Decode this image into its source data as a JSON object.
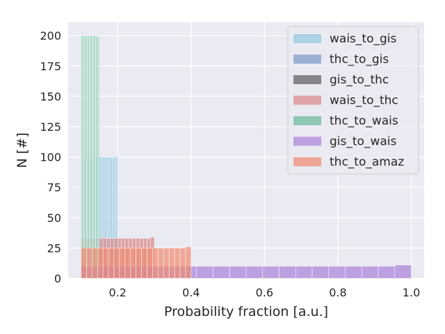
{
  "chart_data": {
    "type": "bar",
    "xlabel": "Probability fraction [a.u.]",
    "ylabel": "N [#]",
    "xlim": [
      0.065,
      1.035
    ],
    "ylim": [
      0,
      211
    ],
    "xticks": [
      0.2,
      0.4,
      0.6,
      0.8,
      1.0
    ],
    "xtick_labels": [
      "0.2",
      "0.4",
      "0.6",
      "0.8",
      "1.0"
    ],
    "yticks": [
      0,
      25,
      50,
      75,
      100,
      125,
      150,
      175,
      200
    ],
    "ytick_labels": [
      "0",
      "25",
      "50",
      "75",
      "100",
      "125",
      "150",
      "175",
      "200"
    ],
    "grid": true,
    "legend_position": "top-right",
    "bins_per_series": 20,
    "series": [
      {
        "name": "wais_to_gis",
        "color": "#92c5de",
        "range": [
          0.1,
          0.2
        ],
        "values": [
          100,
          100,
          100,
          100,
          100,
          100,
          100,
          100,
          100,
          100,
          100,
          100,
          100,
          100,
          100,
          100,
          100,
          100,
          100,
          101
        ]
      },
      {
        "name": "thc_to_gis",
        "color": "#7b97c9",
        "range": [
          0.1,
          0.14
        ],
        "values": [
          100,
          100,
          100,
          100,
          100,
          100,
          100,
          100,
          100,
          100,
          100,
          100,
          100,
          100,
          100,
          100,
          100,
          100,
          100,
          100
        ]
      },
      {
        "name": "gis_to_thc",
        "color": "#5c5c5c",
        "range": [
          0.1,
          0.15
        ],
        "values": [
          33,
          33,
          33,
          33,
          33,
          33,
          33,
          33,
          33,
          33,
          33,
          33,
          33,
          33,
          33,
          33,
          33,
          33,
          33,
          34
        ]
      },
      {
        "name": "wais_to_thc",
        "color": "#d98686",
        "range": [
          0.1,
          0.3
        ],
        "values": [
          33,
          33,
          33,
          33,
          33,
          33,
          33,
          33,
          33,
          33,
          33,
          33,
          33,
          33,
          33,
          33,
          33,
          33,
          33,
          34
        ]
      },
      {
        "name": "thc_to_wais",
        "color": "#66b89a",
        "range": [
          0.1,
          0.15
        ],
        "values": [
          200,
          200,
          200,
          200,
          200,
          200,
          200,
          200,
          200,
          200,
          200,
          200,
          200,
          200,
          200,
          200,
          200,
          199,
          199,
          201
        ]
      },
      {
        "name": "gis_to_wais",
        "color": "#a880d8",
        "range": [
          0.1,
          1.0
        ],
        "values": [
          10,
          10,
          10,
          10,
          10,
          10,
          10,
          10,
          10,
          10,
          10,
          10,
          10,
          10,
          10,
          10,
          10,
          10,
          10,
          11
        ]
      },
      {
        "name": "thc_to_amaz",
        "color": "#f08a70",
        "range": [
          0.1,
          0.4
        ],
        "values": [
          25,
          25,
          25,
          25,
          25,
          25,
          25,
          25,
          25,
          25,
          25,
          25,
          25,
          25,
          25,
          25,
          25,
          25,
          25,
          26
        ]
      }
    ]
  }
}
